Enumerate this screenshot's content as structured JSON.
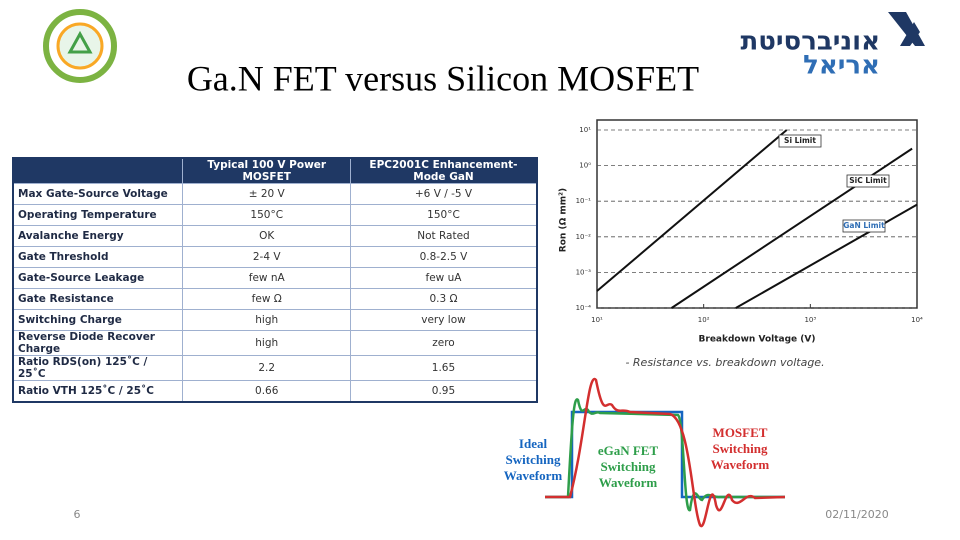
{
  "header": {
    "title": "Ga.N FET versus Silicon MOSFET",
    "logo_text": [
      "אוניברסיטת",
      "אריאל"
    ]
  },
  "table": {
    "columns": [
      "Typical 100 V Power MOSFET",
      "EPC2001C Enhancement-Mode GaN"
    ],
    "rows": [
      [
        "Max Gate-Source Voltage",
        "± 20 V",
        "+6 V / -5 V"
      ],
      [
        "Operating Temperature",
        "150°C",
        "150°C"
      ],
      [
        "Avalanche Energy",
        "OK",
        "Not Rated"
      ],
      [
        "Gate Threshold",
        "2-4 V",
        "0.8-2.5 V"
      ],
      [
        "Gate-Source Leakage",
        "few nA",
        "few uA"
      ],
      [
        "Gate Resistance",
        "few Ω",
        "0.3 Ω"
      ],
      [
        "Switching Charge",
        "high",
        "very low"
      ],
      [
        "Reverse Diode Recover Charge",
        "high",
        "zero"
      ],
      [
        "Ratio RDS(on) 125˚C / 25˚C",
        "2.2",
        "1.65"
      ],
      [
        "Ratio VTH 125˚C / 25˚C",
        "0.66",
        "0.95"
      ]
    ]
  },
  "chart_data": {
    "type": "line",
    "xlabel": "Breakdown Voltage (V)",
    "ylabel": "Ron (Ω mm²)",
    "caption": "- Resistance vs. breakdown voltage.",
    "xscale": "log",
    "yscale": "log",
    "grid": true,
    "xlim": [
      10,
      10000
    ],
    "ylim": [
      0.0001,
      10
    ],
    "xticks": [
      {
        "value": 10,
        "label": "10¹"
      },
      {
        "value": 100,
        "label": "10²"
      },
      {
        "value": 1000,
        "label": "10³"
      },
      {
        "value": 10000,
        "label": "10⁴"
      }
    ],
    "yticks": [
      {
        "value": 0.0001,
        "label": "10⁻⁴"
      },
      {
        "value": 0.001,
        "label": "10⁻³"
      },
      {
        "value": 0.01,
        "label": "10⁻²"
      },
      {
        "value": 0.1,
        "label": "10⁻¹"
      },
      {
        "value": 1,
        "label": "10⁰"
      },
      {
        "value": 10,
        "label": "10¹"
      }
    ],
    "series": [
      {
        "name": "Si Limit",
        "color": "#111111",
        "x": [
          10,
          600
        ],
        "values": [
          0.0003,
          10
        ]
      },
      {
        "name": "SiC Limit",
        "color": "#111111",
        "x": [
          50,
          9000
        ],
        "values": [
          0.0001,
          3
        ]
      },
      {
        "name": "GaN Limit",
        "color": "#111111",
        "x": [
          200,
          10000
        ],
        "values": [
          0.0001,
          0.08
        ]
      }
    ]
  },
  "waveform": {
    "labels": [
      [
        "Ideal",
        "Switching",
        "Waveform"
      ],
      [
        "eGaN FET",
        "Switching",
        "Waveform"
      ],
      [
        "MOSFET",
        "Switching",
        "Waveform"
      ]
    ]
  },
  "footer": {
    "page": "6",
    "date": "02/11/2020"
  }
}
